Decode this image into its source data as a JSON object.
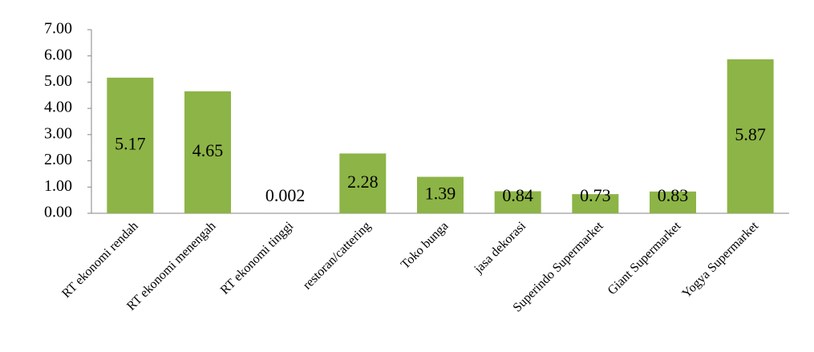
{
  "chart_data": {
    "type": "bar",
    "categories": [
      "RT ekonomi rendah",
      "RT ekonomi menengah",
      "RT ekonomi tinggi",
      "restoran/cattering",
      "Toko bunga",
      "jasa dekorasi",
      "Superindo Supermarket",
      "Giant Supermarket",
      "Yogya Supermarket"
    ],
    "values": [
      5.17,
      4.65,
      0.002,
      2.28,
      1.39,
      0.84,
      0.73,
      0.83,
      5.87
    ],
    "color": "#8db446",
    "ylim": [
      0,
      7
    ],
    "yticks": [
      {
        "value": 0,
        "label": "0.00"
      },
      {
        "value": 1,
        "label": "1.00"
      },
      {
        "value": 2,
        "label": "2.00"
      },
      {
        "value": 3,
        "label": "3.00"
      },
      {
        "value": 4,
        "label": "4.00"
      },
      {
        "value": 5,
        "label": "5.00"
      },
      {
        "value": 6,
        "label": "6.00"
      },
      {
        "value": 7,
        "label": "7.00"
      }
    ],
    "grid": false
  }
}
